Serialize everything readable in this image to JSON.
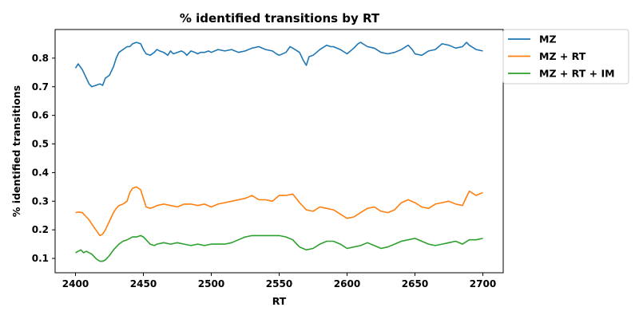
{
  "chart_data": {
    "type": "line",
    "title": "% identified transitions by RT",
    "xlabel": "RT",
    "ylabel": "% identified transitions",
    "xlim": [
      2385,
      2715
    ],
    "ylim": [
      0.05,
      0.9
    ],
    "xticks": [
      2400,
      2450,
      2500,
      2550,
      2600,
      2650,
      2700
    ],
    "yticks": [
      0.1,
      0.2,
      0.3,
      0.4,
      0.5,
      0.6,
      0.7,
      0.8
    ],
    "xtick_labels": [
      "2400",
      "2450",
      "2500",
      "2550",
      "2600",
      "2650",
      "2700"
    ],
    "ytick_labels": [
      "0.1",
      "0.2",
      "0.3",
      "0.4",
      "0.5",
      "0.6",
      "0.7",
      "0.8"
    ],
    "grid": false,
    "legend_position": "outside-top-right",
    "series": [
      {
        "name": "MZ",
        "color": "#1f77b4",
        "x": [
          2400,
          2402,
          2405,
          2408,
          2410,
          2412,
          2415,
          2418,
          2420,
          2422,
          2425,
          2428,
          2430,
          2432,
          2435,
          2438,
          2440,
          2442,
          2445,
          2448,
          2450,
          2452,
          2455,
          2458,
          2460,
          2462,
          2465,
          2468,
          2470,
          2472,
          2475,
          2478,
          2480,
          2482,
          2485,
          2488,
          2490,
          2492,
          2495,
          2498,
          2500,
          2505,
          2510,
          2515,
          2520,
          2525,
          2530,
          2535,
          2540,
          2545,
          2548,
          2550,
          2555,
          2558,
          2560,
          2565,
          2568,
          2570,
          2572,
          2575,
          2580,
          2585,
          2588,
          2590,
          2595,
          2600,
          2605,
          2608,
          2610,
          2615,
          2620,
          2625,
          2630,
          2635,
          2640,
          2645,
          2648,
          2650,
          2655,
          2660,
          2665,
          2670,
          2675,
          2680,
          2685,
          2688,
          2690,
          2695,
          2700
        ],
        "y": [
          0.765,
          0.78,
          0.76,
          0.73,
          0.71,
          0.7,
          0.705,
          0.71,
          0.705,
          0.73,
          0.74,
          0.77,
          0.8,
          0.82,
          0.83,
          0.84,
          0.84,
          0.85,
          0.855,
          0.85,
          0.83,
          0.815,
          0.81,
          0.82,
          0.83,
          0.825,
          0.82,
          0.81,
          0.825,
          0.815,
          0.82,
          0.825,
          0.82,
          0.81,
          0.825,
          0.82,
          0.815,
          0.82,
          0.82,
          0.825,
          0.82,
          0.83,
          0.825,
          0.83,
          0.82,
          0.825,
          0.835,
          0.84,
          0.83,
          0.825,
          0.815,
          0.81,
          0.82,
          0.84,
          0.835,
          0.82,
          0.79,
          0.775,
          0.805,
          0.81,
          0.83,
          0.845,
          0.84,
          0.84,
          0.83,
          0.815,
          0.835,
          0.85,
          0.855,
          0.84,
          0.835,
          0.82,
          0.815,
          0.82,
          0.83,
          0.845,
          0.83,
          0.815,
          0.81,
          0.825,
          0.83,
          0.85,
          0.845,
          0.835,
          0.84,
          0.855,
          0.845,
          0.83,
          0.825
        ]
      },
      {
        "name": "MZ + RT",
        "color": "#ff7f0e",
        "x": [
          2400,
          2402,
          2405,
          2408,
          2410,
          2412,
          2415,
          2418,
          2420,
          2422,
          2425,
          2428,
          2430,
          2432,
          2435,
          2438,
          2440,
          2442,
          2445,
          2448,
          2450,
          2452,
          2455,
          2458,
          2460,
          2465,
          2470,
          2475,
          2480,
          2485,
          2490,
          2495,
          2500,
          2505,
          2510,
          2515,
          2520,
          2525,
          2530,
          2535,
          2540,
          2545,
          2550,
          2555,
          2560,
          2565,
          2570,
          2575,
          2580,
          2585,
          2590,
          2595,
          2600,
          2605,
          2610,
          2615,
          2620,
          2625,
          2630,
          2635,
          2640,
          2645,
          2650,
          2655,
          2660,
          2665,
          2670,
          2675,
          2680,
          2685,
          2688,
          2690,
          2695,
          2700
        ],
        "y": [
          0.26,
          0.262,
          0.26,
          0.245,
          0.235,
          0.22,
          0.2,
          0.18,
          0.185,
          0.2,
          0.23,
          0.26,
          0.275,
          0.285,
          0.29,
          0.3,
          0.33,
          0.345,
          0.35,
          0.34,
          0.31,
          0.28,
          0.275,
          0.28,
          0.285,
          0.29,
          0.285,
          0.28,
          0.29,
          0.29,
          0.285,
          0.29,
          0.28,
          0.29,
          0.295,
          0.3,
          0.305,
          0.31,
          0.32,
          0.305,
          0.305,
          0.3,
          0.32,
          0.32,
          0.325,
          0.295,
          0.27,
          0.265,
          0.28,
          0.275,
          0.27,
          0.255,
          0.24,
          0.245,
          0.26,
          0.275,
          0.28,
          0.265,
          0.26,
          0.27,
          0.295,
          0.305,
          0.295,
          0.28,
          0.275,
          0.29,
          0.295,
          0.3,
          0.29,
          0.285,
          0.315,
          0.335,
          0.32,
          0.33
        ]
      },
      {
        "name": "MZ + RT + IM",
        "color": "#2ca02c",
        "x": [
          2400,
          2402,
          2404,
          2406,
          2408,
          2410,
          2412,
          2415,
          2418,
          2420,
          2422,
          2425,
          2428,
          2430,
          2432,
          2435,
          2438,
          2440,
          2442,
          2445,
          2448,
          2450,
          2452,
          2455,
          2458,
          2460,
          2465,
          2470,
          2475,
          2480,
          2485,
          2490,
          2495,
          2500,
          2505,
          2510,
          2515,
          2520,
          2525,
          2530,
          2535,
          2540,
          2545,
          2550,
          2555,
          2560,
          2565,
          2570,
          2575,
          2580,
          2585,
          2590,
          2595,
          2600,
          2605,
          2610,
          2615,
          2620,
          2625,
          2630,
          2635,
          2640,
          2645,
          2650,
          2655,
          2660,
          2665,
          2670,
          2675,
          2680,
          2685,
          2690,
          2695,
          2700
        ],
        "y": [
          0.12,
          0.125,
          0.13,
          0.12,
          0.125,
          0.12,
          0.115,
          0.1,
          0.09,
          0.09,
          0.095,
          0.11,
          0.13,
          0.14,
          0.15,
          0.16,
          0.165,
          0.17,
          0.175,
          0.175,
          0.18,
          0.175,
          0.165,
          0.15,
          0.145,
          0.15,
          0.155,
          0.15,
          0.155,
          0.15,
          0.145,
          0.15,
          0.145,
          0.15,
          0.15,
          0.15,
          0.155,
          0.165,
          0.175,
          0.18,
          0.18,
          0.18,
          0.18,
          0.18,
          0.175,
          0.165,
          0.14,
          0.13,
          0.135,
          0.15,
          0.16,
          0.16,
          0.15,
          0.135,
          0.14,
          0.145,
          0.155,
          0.145,
          0.135,
          0.14,
          0.15,
          0.16,
          0.165,
          0.17,
          0.16,
          0.15,
          0.145,
          0.15,
          0.155,
          0.16,
          0.15,
          0.165,
          0.165,
          0.17
        ]
      }
    ]
  }
}
